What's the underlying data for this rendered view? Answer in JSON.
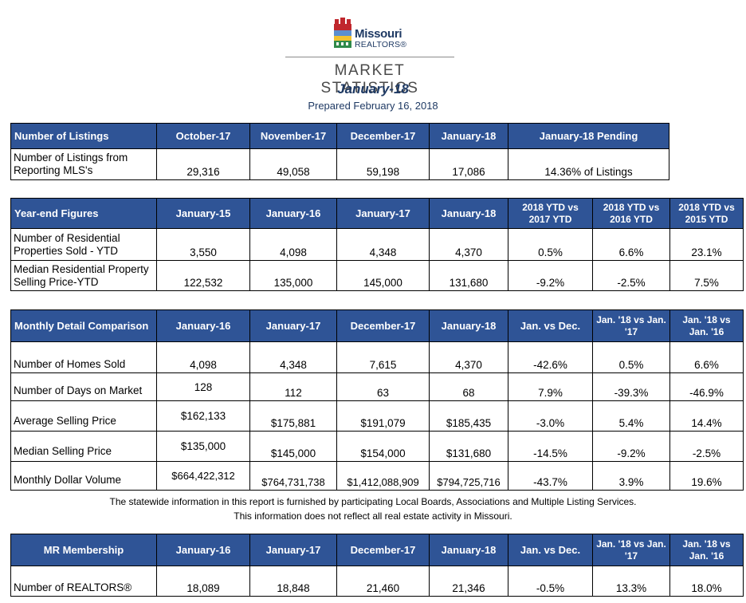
{
  "header": {
    "logo_line1": "Missouri",
    "logo_line2": "REALTORS®",
    "title": "MARKET STATISTICS",
    "month": "January-18",
    "prepared": "Prepared February 16, 2018"
  },
  "colors": {
    "header_bg": "#2f5496",
    "brand_navy": "#1f3a64"
  },
  "listings": {
    "headers": [
      "Number of Listings",
      "October-17",
      "November-17",
      "December-17",
      "January-18",
      "January-18 Pending"
    ],
    "row": {
      "label": "Number of Listings from Reporting MLS's",
      "values": [
        "29,316",
        "49,058",
        "59,198",
        "17,086",
        "14.36% of Listings"
      ]
    }
  },
  "yearend": {
    "headers": [
      "Year-end Figures",
      "January-15",
      "January-16",
      "January-17",
      "January-18",
      "2018 YTD vs 2017 YTD",
      "2018 YTD vs 2016 YTD",
      "2018 YTD vs 2015 YTD"
    ],
    "rows": [
      {
        "label": "Number of Residential Properties Sold - YTD",
        "values": [
          "3,550",
          "4,098",
          "4,348",
          "4,370",
          "0.5%",
          "6.6%",
          "23.1%"
        ]
      },
      {
        "label": "Median Residential Property Selling Price-YTD",
        "values": [
          "122,532",
          "135,000",
          "145,000",
          "131,680",
          "-9.2%",
          "-2.5%",
          "7.5%"
        ]
      }
    ]
  },
  "monthly": {
    "headers": [
      "Monthly Detail Comparison",
      "January-16",
      "January-17",
      "December-17",
      "January-18",
      "Jan. vs Dec.",
      "Jan. '18 vs Jan. '17",
      "Jan. '18  vs Jan. '16"
    ],
    "rows": [
      {
        "label": "Number of Homes Sold",
        "values": [
          "4,098",
          "4,348",
          "7,615",
          "4,370",
          "-42.6%",
          "0.5%",
          "6.6%"
        ]
      },
      {
        "label": "Number of Days on Market",
        "values": [
          "128",
          "112",
          "63",
          "68",
          "7.9%",
          "-39.3%",
          "-46.9%"
        ]
      },
      {
        "label": "Average Selling Price",
        "values": [
          "$162,133",
          "$175,881",
          "$191,079",
          "$185,435",
          "-3.0%",
          "5.4%",
          "14.4%"
        ]
      },
      {
        "label": "Median Selling Price",
        "values": [
          "$135,000",
          "$145,000",
          "$154,000",
          "$131,680",
          "-14.5%",
          "-9.2%",
          "-2.5%"
        ]
      },
      {
        "label": "Monthly Dollar Volume",
        "values": [
          "$664,422,312",
          "$764,731,738",
          "$1,412,088,909",
          "$794,725,716",
          "-43.7%",
          "3.9%",
          "19.6%"
        ]
      }
    ]
  },
  "disclaimer": {
    "line1": "The statewide information in this report is furnished by participating Local Boards, Associations and Multiple Listing Services.",
    "line2": "This information does not reflect all real estate activity in Missouri."
  },
  "membership": {
    "headers": [
      "MR Membership",
      "January-16",
      "January-17",
      "December-17",
      "January-18",
      "Jan. vs Dec.",
      "Jan. '18 vs Jan. '17",
      "Jan. '18  vs Jan. '16"
    ],
    "row": {
      "label": "Number of REALTORS®",
      "values": [
        "18,089",
        "18,848",
        "21,460",
        "21,346",
        "-0.5%",
        "13.3%",
        "18.0%"
      ]
    }
  }
}
